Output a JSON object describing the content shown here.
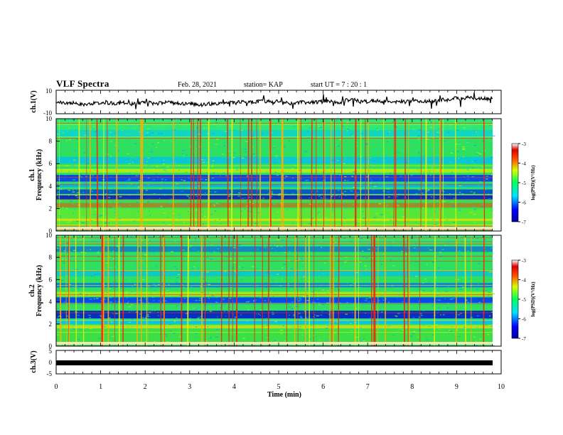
{
  "header": {
    "title": "VLF Spectra",
    "date": "Feb. 28, 2021",
    "station": "station= KAP",
    "start": "start  UT =  7 : 20 : 1"
  },
  "chart_data": [
    {
      "type": "line",
      "title": "",
      "ylabel": "ch.1(V)",
      "ylim": [
        -10,
        10
      ],
      "yticks": [
        "10",
        "-10"
      ],
      "xlim": [
        0,
        10
      ],
      "description_series": "waveform amplitude fluctuating near 0 V"
    },
    {
      "type": "heatmap",
      "ylabel_top": "ch.1",
      "ylabel": "Frequency (kHz)",
      "ylim": [
        0,
        10
      ],
      "yticks": [
        "0",
        "2",
        "4",
        "6",
        "8",
        "10"
      ],
      "xlim": [
        0,
        10
      ],
      "colorbar": {
        "label": "log(PSD)(V²/Hz)",
        "range": [
          -7,
          -3
        ],
        "ticks": [
          "-3",
          "-4",
          "-5",
          "-6",
          "-7"
        ]
      }
    },
    {
      "type": "heatmap",
      "ylabel_top": "ch.2",
      "ylabel": "Frequency (kHz)",
      "ylim": [
        0,
        10
      ],
      "yticks": [
        "0",
        "2",
        "4",
        "6",
        "8",
        "10"
      ],
      "xlim": [
        0,
        10
      ],
      "colorbar": {
        "label": "log(PSD)(V²/Hz)",
        "range": [
          -7,
          -3
        ],
        "ticks": [
          "-3",
          "-4",
          "-5",
          "-6",
          "-7"
        ]
      }
    },
    {
      "type": "line",
      "ylabel": "ch.3(V)",
      "ylim": [
        -5,
        5
      ],
      "yticks": [
        "5",
        "0",
        "-5"
      ],
      "xlim": [
        0,
        10
      ],
      "description_series": "constant level near 0 V"
    }
  ],
  "xaxis": {
    "label": "Time (min)",
    "ticks": [
      "0",
      "1",
      "2",
      "3",
      "4",
      "5",
      "6",
      "7",
      "8",
      "9",
      "10"
    ]
  }
}
